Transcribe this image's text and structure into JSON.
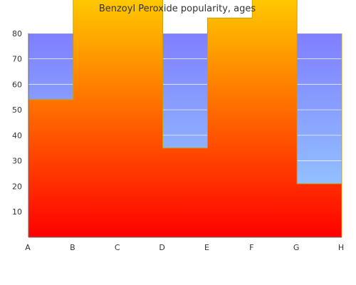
{
  "chart_data": {
    "type": "area",
    "title": "Benzoyl Peroxide popularity, ages",
    "categories": [
      "A",
      "B",
      "C",
      "D",
      "E",
      "F",
      "G",
      "H"
    ],
    "series": [
      {
        "values": [
          54,
          100,
          100,
          35,
          86,
          100,
          21,
          80
        ]
      }
    ],
    "band_top": 80,
    "ylim": [
      0,
      90
    ],
    "yticks": [
      10,
      20,
      30,
      40,
      50,
      60,
      70,
      80
    ],
    "grid": true,
    "colors": {
      "area_top": "#ffd700",
      "area_bottom": "#ff0000",
      "band_top": "#7f7fff",
      "band_bottom": "#99d6ff",
      "edge": "#c8a000",
      "axis": "#6b6b6b",
      "text": "#333333"
    }
  }
}
